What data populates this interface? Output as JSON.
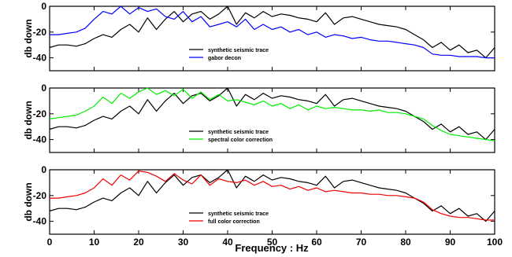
{
  "figure": {
    "xlabel": "Frequency : Hz"
  },
  "chart_data": [
    {
      "type": "line",
      "xlabel": "",
      "ylabel": "db down",
      "xlim": [
        0,
        100
      ],
      "ylim": [
        -50,
        0
      ],
      "xticks": [],
      "yticks": [
        0,
        -20,
        -40
      ],
      "grid": false,
      "legend_position": "center-right",
      "series": [
        {
          "name": "synthetic seismic trace",
          "color": "#000000",
          "x": [
            0,
            2,
            4,
            6,
            8,
            10,
            12,
            14,
            16,
            18,
            20,
            22,
            24,
            26,
            28,
            30,
            32,
            34,
            36,
            38,
            40,
            42,
            44,
            46,
            48,
            50,
            52,
            54,
            56,
            58,
            60,
            62,
            64,
            66,
            68,
            70,
            72,
            74,
            76,
            78,
            80,
            82,
            84,
            86,
            88,
            90,
            92,
            94,
            96,
            98,
            100
          ],
          "y": [
            -32,
            -30,
            -30,
            -31,
            -29,
            -25,
            -22,
            -24,
            -18,
            -14,
            -20,
            -9,
            -18,
            -10,
            -4,
            -12,
            -6,
            -4,
            -10,
            -6,
            0,
            -14,
            -5,
            -9,
            -4,
            -8,
            -6,
            -7,
            -9,
            -10,
            -12,
            -5,
            -14,
            -9,
            -8,
            -10,
            -12,
            -14,
            -15,
            -16,
            -18,
            -22,
            -26,
            -32,
            -28,
            -34,
            -30,
            -36,
            -34,
            -40,
            -32
          ]
        },
        {
          "name": "gabor decon",
          "color": "#0000ff",
          "x": [
            0,
            2,
            4,
            6,
            8,
            10,
            12,
            14,
            16,
            18,
            20,
            22,
            24,
            26,
            28,
            30,
            32,
            34,
            36,
            38,
            40,
            42,
            44,
            46,
            48,
            50,
            52,
            54,
            56,
            58,
            60,
            62,
            64,
            66,
            68,
            70,
            72,
            74,
            76,
            78,
            80,
            82,
            84,
            86,
            88,
            90,
            92,
            94,
            96,
            98,
            100
          ],
          "y": [
            -22,
            -22,
            -21,
            -20,
            -17,
            -10,
            -4,
            -6,
            0,
            -6,
            -1,
            -4,
            -2,
            -8,
            -10,
            -4,
            -12,
            -8,
            -16,
            -14,
            -12,
            -16,
            -10,
            -18,
            -14,
            -18,
            -16,
            -20,
            -18,
            -22,
            -20,
            -24,
            -22,
            -23,
            -25,
            -24,
            -26,
            -27,
            -27,
            -28,
            -29,
            -30,
            -32,
            -37,
            -38,
            -38,
            -39,
            -39,
            -39,
            -40,
            -40
          ]
        }
      ]
    },
    {
      "type": "line",
      "xlabel": "",
      "ylabel": "db down",
      "xlim": [
        0,
        100
      ],
      "ylim": [
        -50,
        0
      ],
      "xticks": [],
      "yticks": [
        0,
        -20,
        -40
      ],
      "grid": false,
      "legend_position": "center-right",
      "series": [
        {
          "name": "synthetic seismic trace",
          "color": "#000000",
          "x": [
            0,
            2,
            4,
            6,
            8,
            10,
            12,
            14,
            16,
            18,
            20,
            22,
            24,
            26,
            28,
            30,
            32,
            34,
            36,
            38,
            40,
            42,
            44,
            46,
            48,
            50,
            52,
            54,
            56,
            58,
            60,
            62,
            64,
            66,
            68,
            70,
            72,
            74,
            76,
            78,
            80,
            82,
            84,
            86,
            88,
            90,
            92,
            94,
            96,
            98,
            100
          ],
          "y": [
            -32,
            -30,
            -30,
            -31,
            -29,
            -25,
            -22,
            -24,
            -18,
            -14,
            -20,
            -9,
            -18,
            -10,
            -4,
            -12,
            -6,
            -4,
            -10,
            -6,
            0,
            -14,
            -5,
            -9,
            -4,
            -8,
            -6,
            -7,
            -9,
            -10,
            -12,
            -5,
            -14,
            -9,
            -8,
            -10,
            -12,
            -14,
            -15,
            -16,
            -18,
            -22,
            -26,
            -32,
            -28,
            -34,
            -30,
            -36,
            -34,
            -40,
            -32
          ]
        },
        {
          "name": "spectral color correction",
          "color": "#00ee00",
          "x": [
            0,
            2,
            4,
            6,
            8,
            10,
            12,
            14,
            16,
            18,
            20,
            22,
            24,
            26,
            28,
            30,
            32,
            34,
            36,
            38,
            40,
            42,
            44,
            46,
            48,
            50,
            52,
            54,
            56,
            58,
            60,
            62,
            64,
            66,
            68,
            70,
            72,
            74,
            76,
            78,
            80,
            82,
            84,
            86,
            88,
            90,
            92,
            94,
            96,
            98,
            100
          ],
          "y": [
            -24,
            -23,
            -22,
            -21,
            -18,
            -14,
            -7,
            -12,
            -4,
            -8,
            -3,
            0,
            -5,
            -2,
            -6,
            -1,
            -8,
            -3,
            -9,
            -5,
            -10,
            -9,
            -11,
            -13,
            -10,
            -14,
            -12,
            -16,
            -13,
            -17,
            -14,
            -16,
            -15,
            -16,
            -17,
            -17,
            -18,
            -17,
            -19,
            -19,
            -20,
            -22,
            -24,
            -29,
            -33,
            -36,
            -37,
            -38,
            -39,
            -40,
            -41
          ]
        }
      ]
    },
    {
      "type": "line",
      "xlabel": "Frequency : Hz",
      "ylabel": "db down",
      "xlim": [
        0,
        100
      ],
      "ylim": [
        -50,
        0
      ],
      "xticks": [
        0,
        10,
        20,
        30,
        40,
        50,
        60,
        70,
        80,
        90,
        100
      ],
      "yticks": [
        0,
        -20,
        -40
      ],
      "grid": false,
      "legend_position": "center-right",
      "series": [
        {
          "name": "synthetic seismic trace",
          "color": "#000000",
          "x": [
            0,
            2,
            4,
            6,
            8,
            10,
            12,
            14,
            16,
            18,
            20,
            22,
            24,
            26,
            28,
            30,
            32,
            34,
            36,
            38,
            40,
            42,
            44,
            46,
            48,
            50,
            52,
            54,
            56,
            58,
            60,
            62,
            64,
            66,
            68,
            70,
            72,
            74,
            76,
            78,
            80,
            82,
            84,
            86,
            88,
            90,
            92,
            94,
            96,
            98,
            100
          ],
          "y": [
            -32,
            -30,
            -30,
            -31,
            -29,
            -25,
            -22,
            -24,
            -18,
            -14,
            -20,
            -9,
            -18,
            -10,
            -4,
            -12,
            -6,
            -4,
            -10,
            -6,
            0,
            -14,
            -5,
            -9,
            -4,
            -8,
            -6,
            -7,
            -9,
            -10,
            -12,
            -5,
            -14,
            -9,
            -8,
            -10,
            -12,
            -14,
            -15,
            -16,
            -18,
            -22,
            -26,
            -32,
            -28,
            -34,
            -30,
            -36,
            -34,
            -40,
            -32
          ]
        },
        {
          "name": "full color correction",
          "color": "#ee0000",
          "x": [
            0,
            2,
            4,
            6,
            8,
            10,
            12,
            14,
            16,
            18,
            20,
            22,
            24,
            26,
            28,
            30,
            32,
            34,
            36,
            38,
            40,
            42,
            44,
            46,
            48,
            50,
            52,
            54,
            56,
            58,
            60,
            62,
            64,
            66,
            68,
            70,
            72,
            74,
            76,
            78,
            80,
            82,
            84,
            86,
            88,
            90,
            92,
            94,
            96,
            98,
            100
          ],
          "y": [
            -22,
            -22,
            -21,
            -20,
            -18,
            -14,
            -7,
            -12,
            -4,
            -8,
            -1,
            -2,
            -5,
            -9,
            -3,
            -8,
            -11,
            -4,
            -12,
            -7,
            -9,
            -10,
            -8,
            -12,
            -9,
            -13,
            -12,
            -15,
            -13,
            -16,
            -14,
            -17,
            -16,
            -17,
            -18,
            -18,
            -19,
            -19,
            -20,
            -20,
            -21,
            -22,
            -25,
            -31,
            -34,
            -36,
            -37,
            -37,
            -38,
            -39,
            -39
          ]
        }
      ]
    }
  ]
}
